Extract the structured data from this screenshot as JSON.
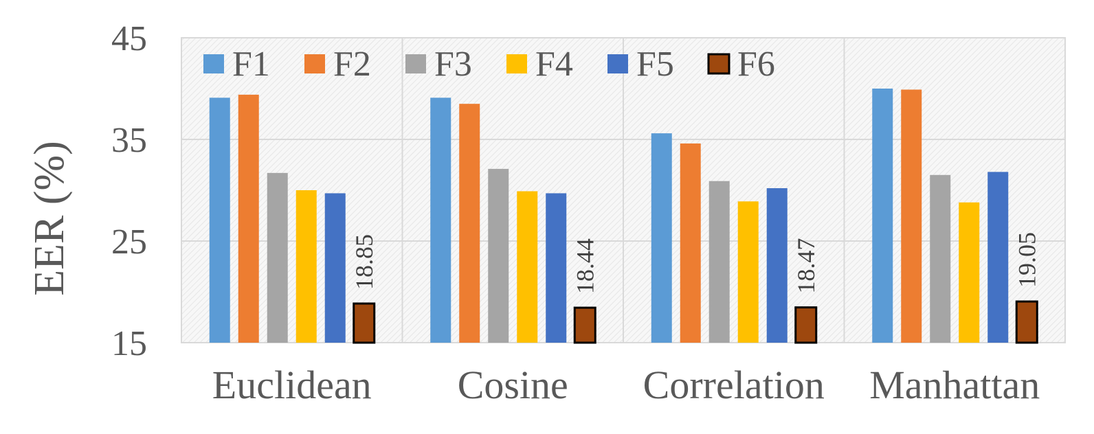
{
  "chart_data": {
    "type": "bar",
    "title": "",
    "xlabel": "",
    "ylabel": "EER (%)",
    "ylim": [
      15,
      45
    ],
    "yticks": [
      15,
      25,
      35,
      45
    ],
    "grid": true,
    "legend_position": "top-left",
    "categories": [
      "Euclidean",
      "Cosine",
      "Correlation",
      "Manhattan"
    ],
    "series": [
      {
        "name": "F1",
        "color": "#5B9BD5",
        "values": [
          39.1,
          39.1,
          35.6,
          40.0
        ]
      },
      {
        "name": "F2",
        "color": "#ED7D31",
        "values": [
          39.4,
          38.5,
          34.6,
          39.9
        ]
      },
      {
        "name": "F3",
        "color": "#A5A5A5",
        "values": [
          31.7,
          32.1,
          30.9,
          31.5
        ]
      },
      {
        "name": "F4",
        "color": "#FFC000",
        "values": [
          30.0,
          29.9,
          28.9,
          28.8
        ]
      },
      {
        "name": "F5",
        "color": "#4472C4",
        "values": [
          29.7,
          29.7,
          30.2,
          31.8
        ]
      },
      {
        "name": "F6",
        "color": "#9E480E",
        "values": [
          18.85,
          18.44,
          18.47,
          19.05
        ],
        "outlined": true
      }
    ],
    "data_labels": {
      "series": "F6",
      "labels": [
        "18.85",
        "18.44",
        "18.47",
        "19.05"
      ]
    }
  }
}
